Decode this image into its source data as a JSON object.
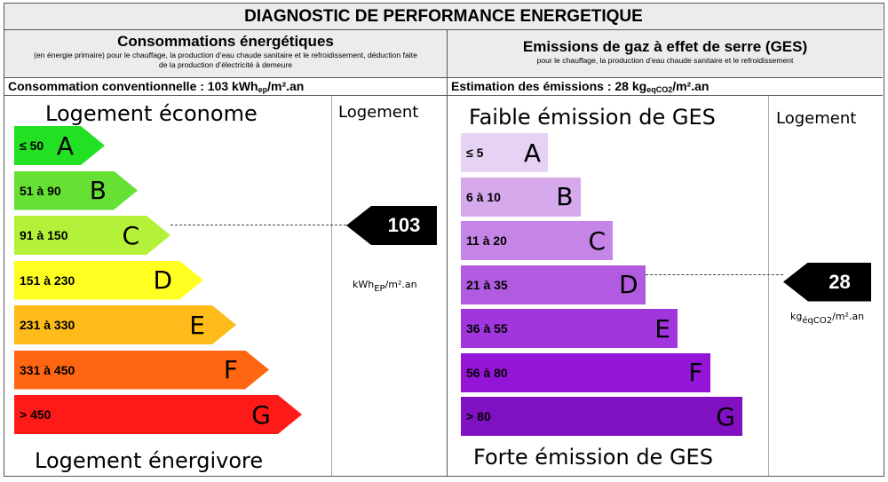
{
  "title": "DIAGNOSTIC DE PERFORMANCE ENERGETIQUE",
  "energy": {
    "heading": "Consommations énergétiques",
    "subheading": "(en énergie primaire) pour le chauffage, la production d’eau chaude sanitaire et le refroidissement, déduction faite de la production d’électricité à demeure",
    "consumption_prefix": "Consommation conventionnelle : 103 kWh",
    "consumption_sub": "ep",
    "consumption_suffix": "/m².an",
    "top_label": "Logement économe",
    "bottom_label": "Logement énergivore",
    "column_label": "Logement",
    "value": "103",
    "value_number": 103,
    "unit_prefix": "kWh",
    "unit_sub": "EP",
    "unit_suffix": "/m².an",
    "selected_class": "C",
    "classes": [
      {
        "letter": "A",
        "range": "≤ 50",
        "color": "#22e022"
      },
      {
        "letter": "B",
        "range": "51 à 90",
        "color": "#66e033"
      },
      {
        "letter": "C",
        "range": "91 à 150",
        "color": "#b4f23a"
      },
      {
        "letter": "D",
        "range": "151 à 230",
        "color": "#ffff22"
      },
      {
        "letter": "E",
        "range": "231 à 330",
        "color": "#ffbb1a"
      },
      {
        "letter": "F",
        "range": "331 à 450",
        "color": "#ff6611"
      },
      {
        "letter": "G",
        "range": "> 450",
        "color": "#ff1a1a"
      }
    ]
  },
  "ges": {
    "heading": "Emissions de gaz à effet de serre (GES)",
    "subheading": "pour le chauffage, la production d’eau chaude sanitaire et le refroidissement",
    "estimation_prefix": "Estimation des émissions : 28 kg",
    "estimation_sub": "eqCO2",
    "estimation_suffix": "/m².an",
    "top_label": "Faible émission de GES",
    "bottom_label": "Forte émission de GES",
    "column_label": "Logement",
    "value": "28",
    "value_number": 28,
    "unit_prefix": "kg",
    "unit_sub": "éqCO2",
    "unit_suffix": "/m².an",
    "selected_class": "D",
    "classes": [
      {
        "letter": "A",
        "range": "≤ 5",
        "color": "#e6d2f2"
      },
      {
        "letter": "B",
        "range": "6 à 10",
        "color": "#d6a8ec"
      },
      {
        "letter": "C",
        "range": "11 à 20",
        "color": "#c585e6"
      },
      {
        "letter": "D",
        "range": "21 à 35",
        "color": "#b15ce0"
      },
      {
        "letter": "E",
        "range": "36 à 55",
        "color": "#a236de"
      },
      {
        "letter": "F",
        "range": "56 à 80",
        "color": "#9414d8"
      },
      {
        "letter": "G",
        "range": "> 80",
        "color": "#8011c2"
      }
    ]
  }
}
